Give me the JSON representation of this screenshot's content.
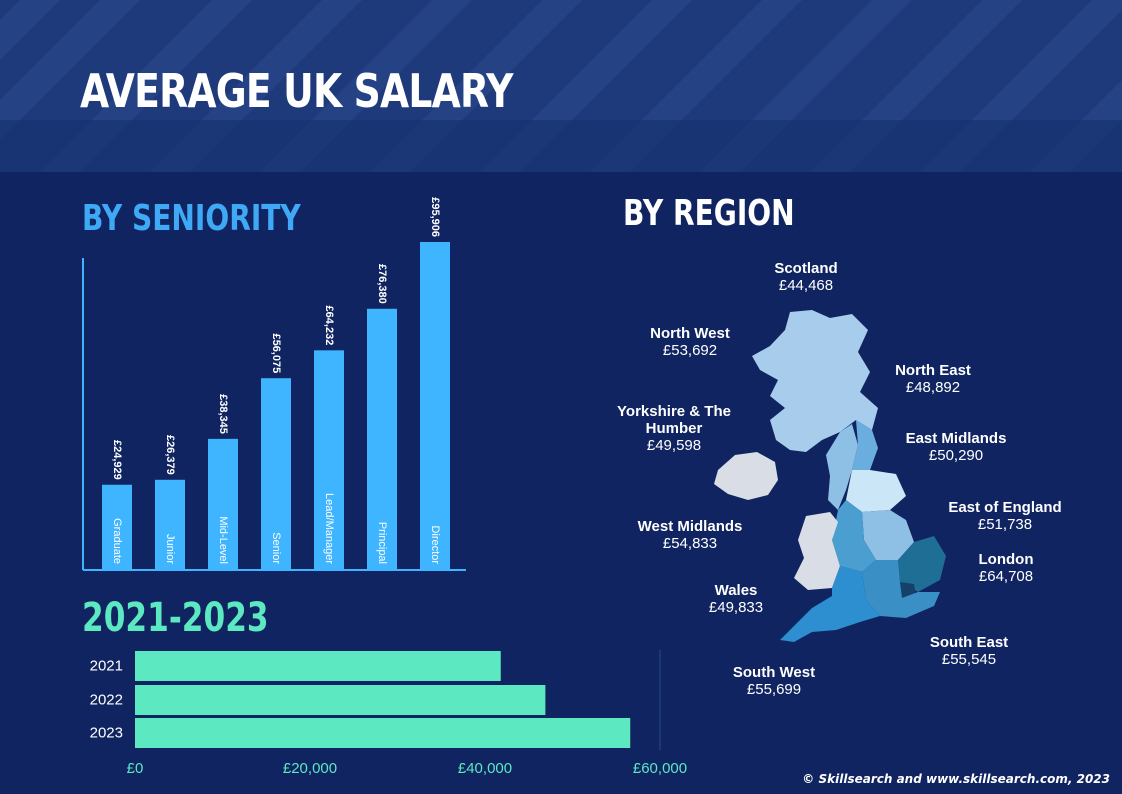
{
  "title": "AVERAGE UK SALARY",
  "sections": {
    "seniority": "BY SENIORITY",
    "region": "BY REGION",
    "years": "2021-2023"
  },
  "copyright": "© Skillsearch and www.skillsearch.com, 2023",
  "colors": {
    "background": "#0f2460",
    "header": "#1f3a7a",
    "bar_seniority": "#3fb4ff",
    "bar_years": "#5ce8c0",
    "title_seniority": "#3fa9f5",
    "title_years": "#5ce8c0"
  },
  "chart_data": [
    {
      "type": "bar",
      "orientation": "vertical",
      "title": "BY SENIORITY",
      "categories": [
        "Graduate",
        "Junior",
        "Mid-Level",
        "Senior",
        "Lead/Manager",
        "Principal",
        "Director"
      ],
      "values": [
        24929,
        26379,
        38345,
        56075,
        64232,
        76380,
        95906
      ],
      "value_labels": [
        "£24,929",
        "£26,379",
        "£38,345",
        "£56,075",
        "£64,232",
        "£76,380",
        "£95,906"
      ],
      "ylim": [
        0,
        100000
      ]
    },
    {
      "type": "bar",
      "orientation": "horizontal",
      "title": "2021-2023",
      "categories": [
        "2021",
        "2022",
        "2023"
      ],
      "values": [
        41800,
        46900,
        56600
      ],
      "xlim": [
        0,
        60000
      ],
      "xticks": [
        0,
        20000,
        40000,
        60000
      ],
      "xtick_labels": [
        "£0",
        "£20,000",
        "£40,000",
        "£60,000"
      ]
    }
  ],
  "regions": [
    {
      "name": "Scotland",
      "value": "£44,468"
    },
    {
      "name": "North West",
      "value": "£53,692"
    },
    {
      "name": "North East",
      "value": "£48,892"
    },
    {
      "name": "Yorkshire & The Humber",
      "value": "£49,598"
    },
    {
      "name": "East Midlands",
      "value": "£50,290"
    },
    {
      "name": "East of England",
      "value": "£51,738"
    },
    {
      "name": "West Midlands",
      "value": "£54,833"
    },
    {
      "name": "London",
      "value": "£64,708"
    },
    {
      "name": "Wales",
      "value": "£49,833"
    },
    {
      "name": "South East",
      "value": "£55,545"
    },
    {
      "name": "South West",
      "value": "£55,699"
    }
  ]
}
